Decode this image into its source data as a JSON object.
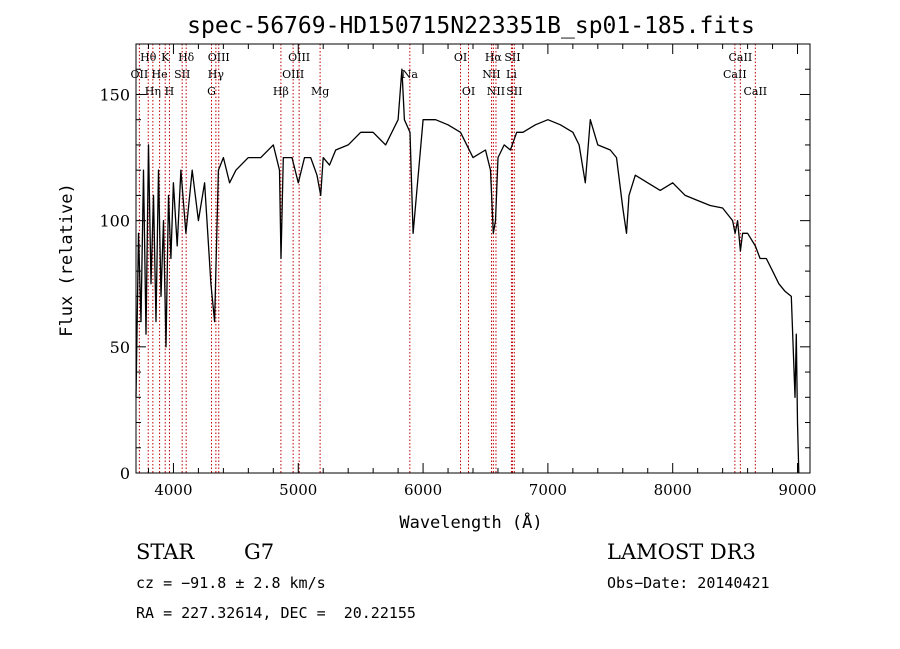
{
  "chart_data": {
    "type": "line",
    "title": "spec-56769-HD150715N223351B_sp01-185.fits",
    "xlabel": "Wavelength (Å)",
    "ylabel": "Flux (relative)",
    "xlim": [
      3700,
      9100
    ],
    "ylim": [
      0,
      170
    ],
    "x_ticks": [
      4000,
      5000,
      6000,
      7000,
      8000,
      9000
    ],
    "y_ticks": [
      0,
      50,
      100,
      150
    ],
    "grid": false,
    "series": [
      {
        "x": [
          3700,
          3720,
          3740,
          3760,
          3780,
          3800,
          3820,
          3840,
          3860,
          3880,
          3900,
          3920,
          3940,
          3960,
          3980,
          4000,
          4030,
          4060,
          4100,
          4150,
          4200,
          4250,
          4300,
          4330,
          4360,
          4400,
          4450,
          4500,
          4600,
          4700,
          4800,
          4850,
          4862,
          4880,
          4950,
          5000,
          5050,
          5100,
          5150,
          5180,
          5200,
          5250,
          5300,
          5400,
          5500,
          5600,
          5700,
          5800,
          5830,
          5850,
          5895,
          5920,
          6000,
          6100,
          6200,
          6300,
          6400,
          6500,
          6540,
          6563,
          6580,
          6600,
          6650,
          6700,
          6750,
          6800,
          6900,
          7000,
          7100,
          7200,
          7250,
          7300,
          7340,
          7400,
          7500,
          7550,
          7600,
          7630,
          7650,
          7700,
          7800,
          7900,
          8000,
          8100,
          8200,
          8300,
          8400,
          8480,
          8500,
          8520,
          8542,
          8560,
          8600,
          8662,
          8700,
          8750,
          8800,
          8850,
          8900,
          8950,
          8980,
          8990,
          9000,
          9010
        ],
        "y": [
          30,
          95,
          60,
          120,
          55,
          130,
          75,
          110,
          60,
          120,
          70,
          100,
          50,
          110,
          85,
          115,
          90,
          120,
          95,
          120,
          100,
          115,
          75,
          60,
          120,
          125,
          115,
          120,
          125,
          125,
          130,
          120,
          85,
          125,
          125,
          115,
          125,
          125,
          118,
          110,
          125,
          122,
          128,
          130,
          135,
          135,
          130,
          140,
          160,
          140,
          135,
          95,
          140,
          140,
          138,
          135,
          125,
          128,
          120,
          95,
          100,
          125,
          130,
          128,
          135,
          135,
          138,
          140,
          138,
          135,
          130,
          115,
          140,
          130,
          128,
          125,
          105,
          95,
          110,
          118,
          115,
          112,
          115,
          110,
          108,
          106,
          105,
          100,
          95,
          100,
          88,
          95,
          95,
          90,
          85,
          85,
          80,
          75,
          72,
          70,
          30,
          55,
          20,
          0
        ]
      }
    ],
    "line_labels": [
      {
        "text": "Hθ",
        "x": 3798,
        "row": 0
      },
      {
        "text": "K",
        "x": 3934,
        "row": 0
      },
      {
        "text": "Hδ",
        "x": 4102,
        "row": 0
      },
      {
        "text": "OII",
        "x": 3727,
        "row": 1
      },
      {
        "text": "He",
        "x": 3889,
        "row": 1
      },
      {
        "text": "SII",
        "x": 4070,
        "row": 1
      },
      {
        "text": "Hγ",
        "x": 4340,
        "row": 1
      },
      {
        "text": "Hη",
        "x": 3835,
        "row": 2
      },
      {
        "text": "H",
        "x": 3968,
        "row": 2
      },
      {
        "text": "OIII",
        "x": 4363,
        "row": 0
      },
      {
        "text": "G",
        "x": 4305,
        "row": 2
      },
      {
        "text": "OIII",
        "x": 5007,
        "row": 0
      },
      {
        "text": "OIII",
        "x": 4959,
        "row": 1
      },
      {
        "text": "Hβ",
        "x": 4861,
        "row": 2
      },
      {
        "text": "Mg",
        "x": 5175,
        "row": 2
      },
      {
        "text": "Na",
        "x": 5894,
        "row": 1
      },
      {
        "text": "OI",
        "x": 6300,
        "row": 0
      },
      {
        "text": "OI",
        "x": 6364,
        "row": 2
      },
      {
        "text": "Hα",
        "x": 6563,
        "row": 0
      },
      {
        "text": "NII",
        "x": 6548,
        "row": 1
      },
      {
        "text": "NII",
        "x": 6584,
        "row": 2
      },
      {
        "text": "SII",
        "x": 6716,
        "row": 0
      },
      {
        "text": "Li",
        "x": 6708,
        "row": 1
      },
      {
        "text": "SII",
        "x": 6731,
        "row": 2
      },
      {
        "text": "CaII",
        "x": 8542,
        "row": 0
      },
      {
        "text": "CaII",
        "x": 8498,
        "row": 1
      },
      {
        "text": "CaII",
        "x": 8662,
        "row": 2
      }
    ],
    "line_marker_color": "#c00000"
  },
  "info": {
    "object_type": "STAR",
    "subclass": "G7",
    "survey": "LAMOST DR3",
    "cz": "cz = −91.8 ± 2.8 km/s",
    "obs_date": "Obs−Date: 20140421",
    "coords": "RA = 227.32614, DEC =  20.22155"
  }
}
